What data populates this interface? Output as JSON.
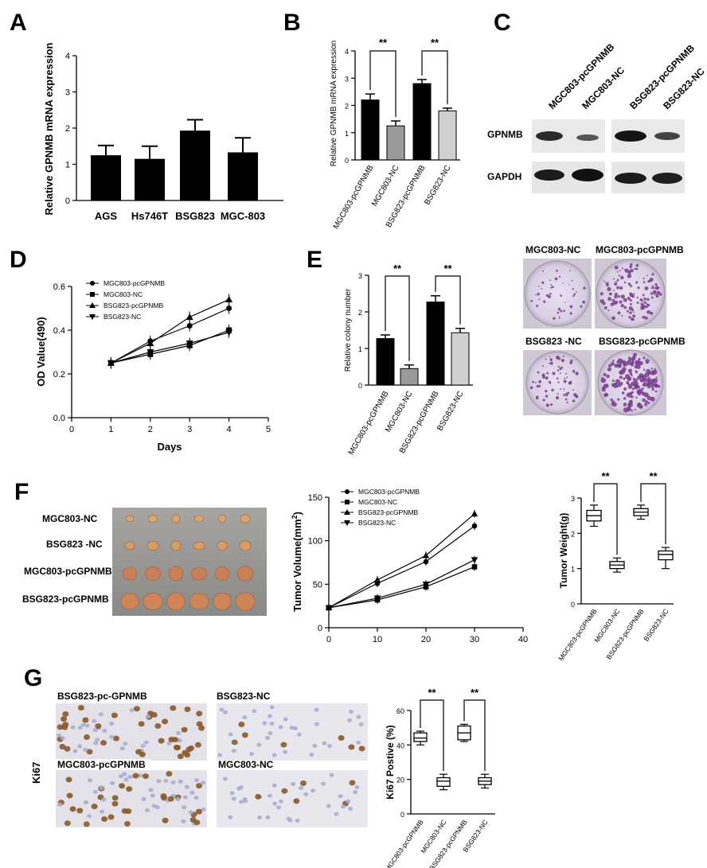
{
  "panels": {
    "A": "A",
    "B": "B",
    "C": "C",
    "D": "D",
    "E": "E",
    "F": "F",
    "G": "G"
  },
  "chart_data": [
    {
      "id": "A",
      "type": "bar",
      "categories": [
        "AGS",
        "Hs746T",
        "BSG823",
        "MGC-803"
      ],
      "values": [
        1.25,
        1.15,
        1.93,
        1.33
      ],
      "errors": [
        0.27,
        0.35,
        0.3,
        0.4
      ],
      "ylabel": "Relative GPNMB mRNA expression",
      "ylim": [
        0,
        4
      ],
      "yticks": [
        "0",
        "1",
        "2",
        "3",
        "4"
      ]
    },
    {
      "id": "B",
      "type": "bar",
      "categories": [
        "MGC803-pcGPNMB",
        "MGC803-NC",
        "BSG823-pcGPNMB",
        "BSG823-NC"
      ],
      "values": [
        2.2,
        1.25,
        2.8,
        1.8
      ],
      "errors": [
        0.22,
        0.18,
        0.15,
        0.1
      ],
      "colors": [
        "#000000",
        "#9a9a9a",
        "#000000",
        "#d0d0d0"
      ],
      "ylabel": "Relative GPNMB  mRNA expression",
      "ylim": [
        0,
        4
      ],
      "yticks": [
        "0",
        "1",
        "2",
        "3",
        "4"
      ],
      "sig": [
        "**",
        "**"
      ]
    },
    {
      "id": "D",
      "type": "line",
      "x": [
        1,
        2,
        3,
        4
      ],
      "series": [
        {
          "name": "MGC803-pcGPNMB",
          "values": [
            0.25,
            0.35,
            0.42,
            0.5
          ],
          "marker": "circle"
        },
        {
          "name": "MGC803-NC",
          "values": [
            0.25,
            0.29,
            0.33,
            0.4
          ],
          "marker": "square"
        },
        {
          "name": "BSG823-pcGPNMB",
          "values": [
            0.25,
            0.34,
            0.46,
            0.54
          ],
          "marker": "triangle-up"
        },
        {
          "name": "BSG823-NC",
          "values": [
            0.25,
            0.3,
            0.34,
            0.39
          ],
          "marker": "triangle-down"
        }
      ],
      "xlabel": "Days",
      "ylabel": "OD Value(490)",
      "xlim": [
        0,
        5
      ],
      "ylim": [
        0,
        0.6
      ],
      "xticks": [
        "0",
        "1",
        "2",
        "3",
        "4",
        "5"
      ],
      "yticks": [
        "0.0",
        "0.2",
        "0.4",
        "0.6"
      ]
    },
    {
      "id": "E",
      "type": "bar",
      "categories": [
        "MGC803-pcGPNMB",
        "MGC803-NC",
        "BSG823-pcGPNMB",
        "BSG823-NC"
      ],
      "values": [
        1.27,
        0.45,
        2.27,
        1.43
      ],
      "errors": [
        0.1,
        0.1,
        0.17,
        0.12
      ],
      "colors": [
        "#000000",
        "#9a9a9a",
        "#000000",
        "#d0d0d0"
      ],
      "ylabel": "Relative colony number",
      "ylim": [
        0,
        3
      ],
      "yticks": [
        "0",
        "1",
        "2",
        "3"
      ],
      "sig": [
        "**",
        "**"
      ]
    },
    {
      "id": "F-volume",
      "type": "line",
      "x": [
        0,
        10,
        20,
        30
      ],
      "series": [
        {
          "name": "MGC803-pcGPNMB",
          "values": [
            23,
            51,
            76,
            117
          ],
          "marker": "circle"
        },
        {
          "name": "MGC803-NC",
          "values": [
            23,
            32,
            47,
            70
          ],
          "marker": "square"
        },
        {
          "name": "BSG823-pcGPNMB",
          "values": [
            23,
            55,
            83,
            131
          ],
          "marker": "triangle-up"
        },
        {
          "name": "BSG823-NC",
          "values": [
            23,
            34,
            50,
            78
          ],
          "marker": "triangle-down"
        }
      ],
      "ylabel": "Tumor Volume(mm",
      "ylabel_sup": "2",
      "ylabel_end": ")",
      "xlim": [
        0,
        40
      ],
      "ylim": [
        0,
        150
      ],
      "xticks": [
        "0",
        "10",
        "20",
        "30",
        "40"
      ],
      "yticks": [
        "0",
        "50",
        "100",
        "150"
      ]
    },
    {
      "id": "F-weight",
      "type": "box",
      "categories": [
        "MGC803-pcGPNMB",
        "MGC803-NC",
        "BSG823-pcGPNMB",
        "BSG823-NC"
      ],
      "boxes": [
        {
          "min": 2.2,
          "q1": 2.35,
          "median": 2.5,
          "q3": 2.65,
          "max": 2.8
        },
        {
          "min": 0.9,
          "q1": 1.0,
          "median": 1.1,
          "q3": 1.2,
          "max": 1.3
        },
        {
          "min": 2.4,
          "q1": 2.5,
          "median": 2.6,
          "q3": 2.7,
          "max": 2.8
        },
        {
          "min": 1.0,
          "q1": 1.25,
          "median": 1.4,
          "q3": 1.5,
          "max": 1.6
        }
      ],
      "ylabel": "Tumor Weight(g)",
      "ylim": [
        0,
        3
      ],
      "yticks": [
        "0",
        "1",
        "2",
        "3"
      ],
      "sig": [
        "**",
        "**"
      ]
    },
    {
      "id": "G",
      "type": "box",
      "categories": [
        "MGC803-pcGPNMB",
        "MGC803-NC",
        "BSG823-pcGPNMB",
        "BSG823-NC"
      ],
      "boxes": [
        {
          "min": 40,
          "q1": 42,
          "median": 44,
          "q3": 47,
          "max": 48
        },
        {
          "min": 14,
          "q1": 16,
          "median": 19,
          "q3": 21,
          "max": 23
        },
        {
          "min": 42,
          "q1": 43,
          "median": 47,
          "q3": 51,
          "max": 52
        },
        {
          "min": 15,
          "q1": 17,
          "median": 19,
          "q3": 21,
          "max": 23
        }
      ],
      "ylabel": "Ki67 Postive (%)",
      "ylim": [
        0,
        60
      ],
      "yticks": [
        "0",
        "20",
        "40",
        "60"
      ],
      "sig": [
        "**",
        "**"
      ]
    }
  ],
  "blot": {
    "lanes": [
      "MGC803-pcGPNMB",
      "MGC803-NC",
      "BSG823-pcGPNMB",
      "BSG823-NC"
    ],
    "rows": [
      "GPNMB",
      "GAPDH"
    ]
  },
  "colony": {
    "labels": [
      "MGC803-NC",
      "MGC803-pcGPNMB",
      "BSG823 -NC",
      "BSG823-pcGPNMB"
    ]
  },
  "tumor_photo": {
    "rows": [
      "MGC803-NC",
      "BSG823 -NC",
      "MGC803-pcGPNMB",
      "BSG823-pcGPNMB"
    ]
  },
  "ihc": {
    "side_label": "Ki67",
    "labels": [
      "BSG823-pc-GPNMB",
      "BSG823-NC",
      "MGC803-pcGPNMB",
      "MGC803-NC"
    ]
  }
}
